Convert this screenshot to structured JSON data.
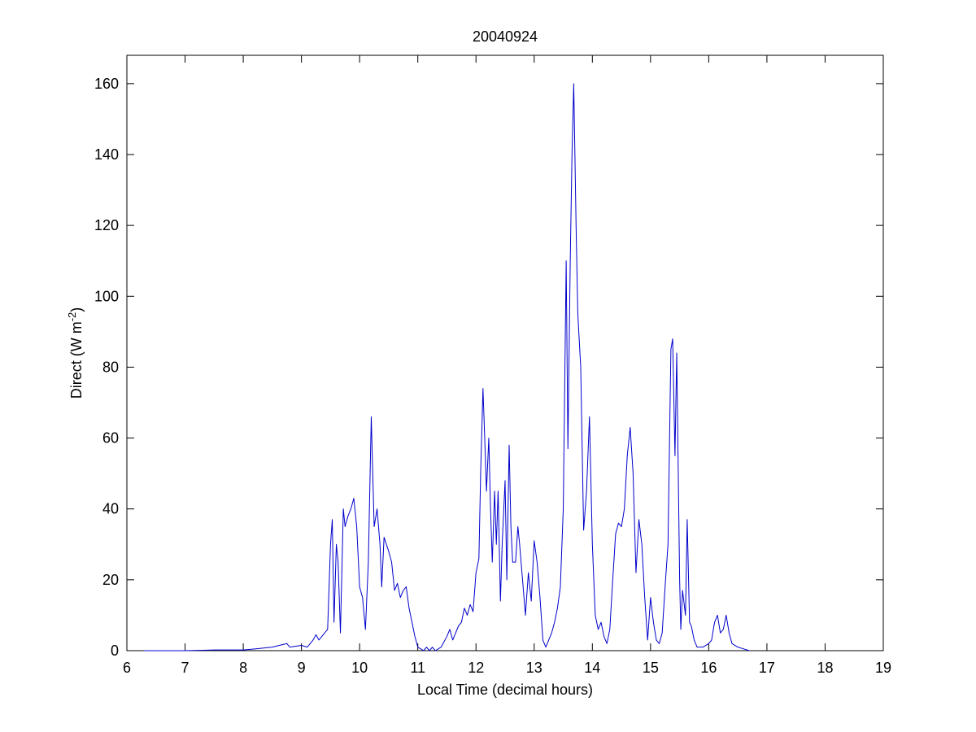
{
  "chart_data": {
    "type": "line",
    "title": "20040924",
    "xlabel": "Local Time (decimal hours)",
    "ylabel_parts": [
      "Direct (W m",
      "-2",
      ")"
    ],
    "xlim": [
      6,
      19
    ],
    "ylim": [
      0,
      168
    ],
    "xticks": [
      6,
      7,
      8,
      9,
      10,
      11,
      12,
      13,
      14,
      15,
      16,
      17,
      18,
      19
    ],
    "yticks": [
      0,
      20,
      40,
      60,
      80,
      100,
      120,
      140,
      160
    ],
    "grid": false,
    "series": [
      {
        "color": "#0000cc",
        "x": [
          6.3,
          7.0,
          7.5,
          8.0,
          8.2,
          8.5,
          8.75,
          8.8,
          9.0,
          9.1,
          9.2,
          9.25,
          9.3,
          9.4,
          9.45,
          9.5,
          9.53,
          9.56,
          9.6,
          9.63,
          9.67,
          9.72,
          9.75,
          9.8,
          9.85,
          9.9,
          9.95,
          10.0,
          10.05,
          10.1,
          10.15,
          10.2,
          10.25,
          10.3,
          10.35,
          10.38,
          10.42,
          10.5,
          10.55,
          10.6,
          10.65,
          10.7,
          10.75,
          10.8,
          10.85,
          10.9,
          10.95,
          11.0,
          11.05,
          11.1,
          11.15,
          11.2,
          11.25,
          11.3,
          11.4,
          11.5,
          11.55,
          11.6,
          11.65,
          11.7,
          11.75,
          11.8,
          11.85,
          11.9,
          11.95,
          12.0,
          12.05,
          12.08,
          12.12,
          12.15,
          12.18,
          12.22,
          12.25,
          12.28,
          12.32,
          12.35,
          12.38,
          12.42,
          12.45,
          12.5,
          12.53,
          12.57,
          12.6,
          12.63,
          12.68,
          12.72,
          12.75,
          12.8,
          12.85,
          12.9,
          12.95,
          13.0,
          13.05,
          13.1,
          13.15,
          13.2,
          13.25,
          13.3,
          13.35,
          13.4,
          13.45,
          13.5,
          13.55,
          13.58,
          13.62,
          13.65,
          13.68,
          13.72,
          13.75,
          13.8,
          13.85,
          13.9,
          13.95,
          14.0,
          14.05,
          14.1,
          14.15,
          14.2,
          14.25,
          14.3,
          14.35,
          14.4,
          14.45,
          14.5,
          14.55,
          14.6,
          14.65,
          14.7,
          14.75,
          14.8,
          14.85,
          14.9,
          14.95,
          15.0,
          15.05,
          15.1,
          15.15,
          15.2,
          15.25,
          15.3,
          15.35,
          15.38,
          15.42,
          15.45,
          15.5,
          15.52,
          15.55,
          15.6,
          15.63,
          15.67,
          15.7,
          15.75,
          15.8,
          15.9,
          16.0,
          16.05,
          16.1,
          16.15,
          16.2,
          16.25,
          16.3,
          16.35,
          16.4,
          16.5,
          16.6,
          16.7
        ],
        "values": [
          0,
          0,
          0.2,
          0.2,
          0.5,
          1,
          2,
          1,
          1.5,
          1,
          3,
          4.5,
          3,
          5,
          6,
          30,
          37,
          8,
          30,
          25,
          5,
          40,
          35,
          38,
          40,
          43,
          35,
          18,
          15,
          6,
          25,
          66,
          35,
          40,
          30,
          18,
          32,
          28,
          25,
          17,
          19,
          15,
          17,
          18,
          12,
          8,
          4,
          1,
          0.5,
          0,
          1,
          0,
          1,
          0,
          1,
          4,
          6,
          3,
          5,
          7,
          8,
          12,
          10,
          13,
          11,
          22,
          26,
          50,
          74,
          60,
          45,
          60,
          40,
          25,
          45,
          30,
          45,
          14,
          30,
          48,
          20,
          58,
          35,
          25,
          25,
          35,
          30,
          20,
          10,
          22,
          14,
          31,
          25,
          15,
          3,
          1,
          3,
          5,
          8,
          12,
          18,
          40,
          110,
          57,
          110,
          140,
          160,
          120,
          95,
          80,
          34,
          45,
          66,
          30,
          10,
          6,
          8,
          4,
          2,
          6,
          20,
          33,
          36,
          35,
          40,
          55,
          63,
          50,
          22,
          37,
          30,
          15,
          3,
          15,
          8,
          3,
          2,
          5,
          18,
          30,
          85,
          88,
          55,
          84,
          20,
          6,
          17,
          10,
          37,
          8,
          7,
          3,
          1,
          1,
          2,
          3,
          8,
          10,
          5,
          6,
          10,
          5,
          2,
          1,
          0.5,
          0
        ]
      }
    ]
  }
}
